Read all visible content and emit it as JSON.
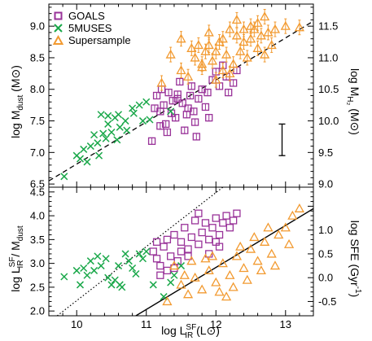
{
  "colors": {
    "goals": "#993399",
    "muses": "#1aa84a",
    "super": "#f29a30",
    "axis": "#000000"
  },
  "chart_data": [
    {
      "type": "scatter",
      "panel": "top",
      "xlim": [
        9.6,
        13.4
      ],
      "ylim": [
        6.45,
        9.35
      ],
      "ylim_right": [
        8.95,
        11.85
      ],
      "xticks": [
        10,
        11,
        12,
        13
      ],
      "yticks": [
        "6.5",
        "7.0",
        "7.5",
        "8.0",
        "8.5",
        "9.0"
      ],
      "yticks_right": [
        "9.0",
        "9.5",
        "10.0",
        "10.5",
        "11.0",
        "11.5"
      ],
      "ylabel": {
        "pre": "log M",
        "sub": "dust",
        "post": " (M⊙)"
      },
      "ylabel_right": {
        "pre": "log M",
        "sub": "H₂",
        "post": " (M⊙)"
      },
      "legend": {
        "placement": "top-left",
        "entries": [
          "GOALS",
          "5MUSES",
          "Supersample"
        ]
      },
      "fit_line": {
        "x": [
          9.6,
          13.4
        ],
        "y": [
          6.55,
          9.08
        ],
        "style": "dashed"
      },
      "error_bar": {
        "x": 12.95,
        "y_low": 6.95,
        "y_high": 7.45
      },
      "series": [
        {
          "name": "GOALS",
          "marker": "square",
          "points": [
            [
              11.08,
              7.18
            ],
            [
              11.2,
              7.42
            ],
            [
              11.25,
              7.75
            ],
            [
              11.32,
              7.95
            ],
            [
              11.36,
              7.62
            ],
            [
              11.42,
              7.55
            ],
            [
              11.45,
              7.85
            ],
            [
              11.52,
              7.78
            ],
            [
              11.55,
              7.35
            ],
            [
              11.6,
              7.7
            ],
            [
              11.63,
              7.9
            ],
            [
              11.68,
              7.65
            ],
            [
              11.7,
              7.48
            ],
            [
              11.75,
              7.85
            ],
            [
              11.8,
              8.0
            ],
            [
              11.85,
              7.72
            ],
            [
              11.9,
              7.55
            ],
            [
              11.95,
              8.15
            ],
            [
              12.0,
              8.28
            ],
            [
              12.05,
              8.05
            ],
            [
              12.1,
              8.38
            ],
            [
              12.15,
              8.2
            ],
            [
              12.18,
              7.95
            ],
            [
              12.25,
              8.1
            ],
            [
              11.15,
              7.9
            ],
            [
              11.22,
              8.0
            ],
            [
              11.28,
              7.45
            ],
            [
              11.38,
              7.82
            ],
            [
              11.48,
              8.12
            ],
            [
              11.58,
              7.6
            ],
            [
              11.72,
              7.25
            ],
            [
              11.88,
              7.95
            ],
            [
              11.12,
              7.7
            ],
            [
              11.3,
              7.32
            ],
            [
              11.65,
              8.05
            ],
            [
              12.3,
              8.3
            ],
            [
              11.2,
              7.65
            ],
            [
              11.45,
              7.92
            ]
          ]
        },
        {
          "name": "5MUSES",
          "marker": "x",
          "points": [
            [
              9.82,
              6.62
            ],
            [
              10.05,
              6.9
            ],
            [
              10.1,
              7.05
            ],
            [
              10.15,
              6.85
            ],
            [
              10.2,
              7.1
            ],
            [
              10.25,
              7.28
            ],
            [
              10.3,
              7.15
            ],
            [
              10.32,
              6.95
            ],
            [
              10.38,
              7.3
            ],
            [
              10.42,
              7.22
            ],
            [
              10.45,
              7.45
            ],
            [
              10.5,
              7.32
            ],
            [
              10.55,
              7.55
            ],
            [
              10.6,
              7.6
            ],
            [
              10.62,
              7.4
            ],
            [
              10.7,
              7.5
            ],
            [
              10.72,
              7.35
            ],
            [
              10.8,
              7.7
            ],
            [
              10.82,
              7.62
            ],
            [
              10.9,
              7.75
            ],
            [
              10.95,
              7.5
            ],
            [
              11.0,
              7.8
            ],
            [
              10.35,
              7.6
            ],
            [
              10.45,
              7.58
            ],
            [
              11.35,
              7.65
            ],
            [
              10.0,
              6.95
            ],
            [
              11.05,
              7.52
            ],
            [
              10.58,
              7.2
            ]
          ]
        },
        {
          "name": "Supersample",
          "marker": "triangle",
          "points": [
            [
              11.22,
              8.1
            ],
            [
              11.35,
              8.55
            ],
            [
              11.5,
              8.3
            ],
            [
              11.6,
              8.2
            ],
            [
              11.7,
              8.5
            ],
            [
              11.75,
              8.7
            ],
            [
              11.8,
              8.4
            ],
            [
              11.85,
              8.6
            ],
            [
              11.9,
              8.9
            ],
            [
              11.95,
              8.45
            ],
            [
              12.0,
              8.6
            ],
            [
              12.05,
              8.75
            ],
            [
              12.1,
              8.3
            ],
            [
              12.15,
              8.55
            ],
            [
              12.2,
              8.95
            ],
            [
              12.25,
              8.4
            ],
            [
              12.3,
              8.85
            ],
            [
              12.35,
              8.6
            ],
            [
              12.4,
              8.75
            ],
            [
              12.45,
              8.5
            ],
            [
              12.5,
              8.8
            ],
            [
              12.55,
              8.95
            ],
            [
              12.6,
              8.65
            ],
            [
              12.65,
              8.85
            ],
            [
              12.7,
              8.55
            ],
            [
              12.75,
              8.9
            ],
            [
              12.8,
              8.7
            ],
            [
              12.85,
              8.95
            ],
            [
              13.0,
              9.0
            ],
            [
              13.2,
              8.98
            ],
            [
              11.9,
              8.7
            ],
            [
              12.1,
              8.8
            ],
            [
              12.3,
              9.1
            ],
            [
              12.5,
              9.0
            ],
            [
              11.65,
              8.65
            ],
            [
              12.0,
              8.15
            ],
            [
              12.2,
              8.25
            ],
            [
              12.4,
              8.95
            ],
            [
              11.5,
              8.8
            ],
            [
              12.6,
              9.05
            ],
            [
              11.8,
              8.35
            ],
            [
              12.7,
              9.15
            ]
          ]
        }
      ]
    },
    {
      "type": "scatter",
      "panel": "bottom",
      "xlim": [
        9.6,
        13.4
      ],
      "ylim": [
        1.9,
        4.6
      ],
      "ylim_right": [
        -0.8,
        1.9
      ],
      "xticks": [
        10,
        11,
        12,
        13
      ],
      "xtick_labels": [
        "10",
        "11",
        "12",
        "13"
      ],
      "yticks": [
        "2.0",
        "2.5",
        "3.0",
        "3.5",
        "4.0",
        "4.5"
      ],
      "yticks_right": [
        "-0.5",
        "0.0",
        "0.5",
        "1.0"
      ],
      "xlabel": {
        "pre": "log L",
        "sup": "SF",
        "sub": "IR",
        "post": " (L⊙)"
      },
      "ylabel": {
        "pre": "log L",
        "sup": "SF",
        "sub": "IR",
        "mid": " / M",
        "sub2": "dust"
      },
      "ylabel_right": {
        "pre": "log SFE (Gyr",
        "sup": "-1",
        "post": ")"
      },
      "dotted_line": {
        "x": [
          9.72,
          12.1
        ],
        "y": [
          1.9,
          4.6
        ]
      },
      "solid_line": {
        "x": [
          10.85,
          13.4
        ],
        "y": [
          1.9,
          4.15
        ]
      },
      "series": [
        {
          "name": "GOALS",
          "marker": "square",
          "points": [
            [
              11.1,
              3.25
            ],
            [
              11.15,
              3.1
            ],
            [
              11.2,
              2.95
            ],
            [
              11.25,
              3.35
            ],
            [
              11.3,
              3.5
            ],
            [
              11.35,
              3.15
            ],
            [
              11.4,
              3.6
            ],
            [
              11.45,
              3.05
            ],
            [
              11.5,
              3.45
            ],
            [
              11.55,
              3.75
            ],
            [
              11.6,
              3.3
            ],
            [
              11.65,
              3.55
            ],
            [
              11.7,
              3.9
            ],
            [
              11.75,
              3.4
            ],
            [
              11.8,
              3.65
            ],
            [
              11.85,
              3.85
            ],
            [
              11.9,
              3.5
            ],
            [
              11.95,
              3.75
            ],
            [
              12.0,
              3.95
            ],
            [
              12.05,
              3.6
            ],
            [
              12.1,
              3.85
            ],
            [
              12.15,
              4.0
            ],
            [
              12.2,
              3.75
            ],
            [
              12.25,
              3.9
            ],
            [
              12.3,
              4.05
            ],
            [
              11.2,
              2.75
            ],
            [
              11.3,
              2.85
            ],
            [
              11.15,
              3.45
            ],
            [
              11.6,
              3.15
            ],
            [
              11.9,
              3.2
            ],
            [
              12.05,
              3.35
            ],
            [
              11.4,
              2.9
            ],
            [
              11.75,
              4.05
            ],
            [
              12.0,
              3.45
            ],
            [
              11.5,
              3.25
            ]
          ]
        },
        {
          "name": "5MUSES",
          "marker": "x",
          "points": [
            [
              9.82,
              2.72
            ],
            [
              10.05,
              2.55
            ],
            [
              10.1,
              2.9
            ],
            [
              10.15,
              2.75
            ],
            [
              10.2,
              3.05
            ],
            [
              10.25,
              2.85
            ],
            [
              10.3,
              3.15
            ],
            [
              10.35,
              2.95
            ],
            [
              10.42,
              3.1
            ],
            [
              10.45,
              2.7
            ],
            [
              10.5,
              2.55
            ],
            [
              10.55,
              2.65
            ],
            [
              10.6,
              2.95
            ],
            [
              10.65,
              2.5
            ],
            [
              10.7,
              3.2
            ],
            [
              10.75,
              3.05
            ],
            [
              10.8,
              2.9
            ],
            [
              10.85,
              2.78
            ],
            [
              10.9,
              3.2
            ],
            [
              10.95,
              3.1
            ],
            [
              11.0,
              3.25
            ],
            [
              11.1,
              2.55
            ],
            [
              11.25,
              2.3
            ],
            [
              11.35,
              2.6
            ],
            [
              11.4,
              2.75
            ],
            [
              11.5,
              2.95
            ],
            [
              10.0,
              2.85
            ],
            [
              10.62,
              2.55
            ]
          ]
        },
        {
          "name": "Supersample",
          "marker": "triangle",
          "points": [
            [
              11.3,
              2.2
            ],
            [
              11.5,
              2.55
            ],
            [
              11.6,
              2.35
            ],
            [
              11.7,
              2.7
            ],
            [
              11.8,
              2.45
            ],
            [
              11.9,
              2.85
            ],
            [
              12.0,
              2.6
            ],
            [
              12.1,
              3.0
            ],
            [
              12.2,
              2.75
            ],
            [
              12.3,
              3.15
            ],
            [
              12.4,
              2.9
            ],
            [
              12.5,
              3.3
            ],
            [
              12.6,
              3.05
            ],
            [
              12.7,
              3.45
            ],
            [
              12.8,
              3.2
            ],
            [
              12.9,
              3.6
            ],
            [
              13.0,
              3.75
            ],
            [
              13.1,
              4.0
            ],
            [
              13.2,
              4.15
            ],
            [
              11.4,
              2.95
            ],
            [
              11.65,
              3.05
            ],
            [
              11.85,
              3.1
            ],
            [
              12.05,
              2.4
            ],
            [
              12.25,
              2.5
            ],
            [
              12.45,
              2.65
            ],
            [
              12.65,
              2.85
            ],
            [
              12.85,
              2.95
            ],
            [
              12.55,
              3.55
            ],
            [
              12.35,
              3.35
            ],
            [
              11.95,
              3.15
            ],
            [
              11.55,
              2.75
            ],
            [
              12.15,
              2.3
            ],
            [
              12.75,
              3.75
            ],
            [
              13.05,
              3.4
            ]
          ]
        }
      ]
    }
  ]
}
